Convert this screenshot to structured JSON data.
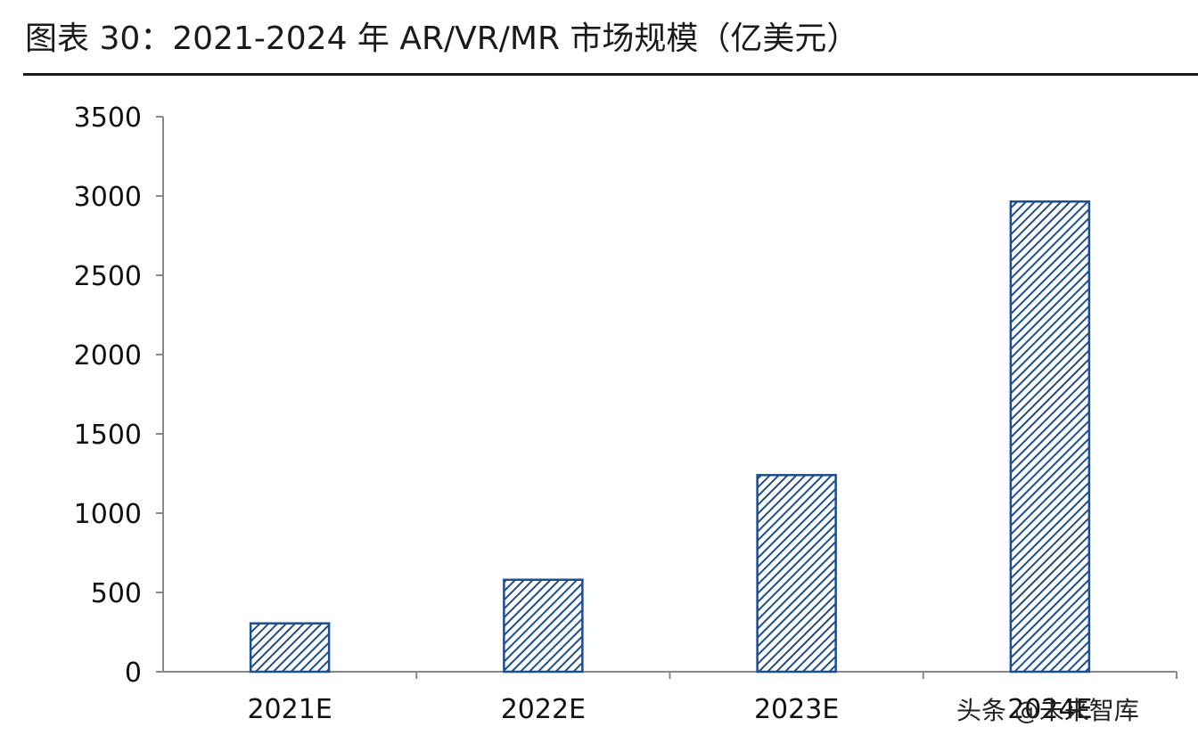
{
  "figure": {
    "title": "图表 30：2021-2024 年 AR/VR/MR 市场规模（亿美元）"
  },
  "watermark": "头条 @未来智库",
  "chart_data": {
    "type": "bar",
    "categories": [
      "2021E",
      "2022E",
      "2023E",
      "2024E"
    ],
    "values": [
      305,
      580,
      1240,
      2965
    ],
    "ylim": [
      0,
      3500
    ],
    "yticks": [
      0,
      500,
      1000,
      1500,
      2000,
      2500,
      3000,
      3500
    ],
    "title": "",
    "xlabel": "",
    "ylabel": "",
    "grid": false,
    "legend": "none",
    "bar_fill": "#ffffff",
    "bar_hatch": "#1f4e8c",
    "axis_color": "#888888",
    "label_color": "#111111"
  }
}
